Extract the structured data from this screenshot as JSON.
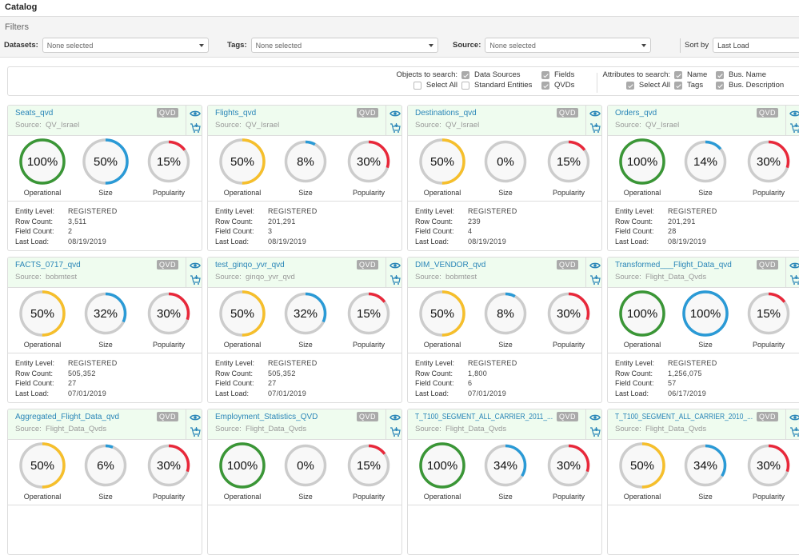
{
  "header": {
    "title": "Catalog"
  },
  "filters": {
    "title": "Filters",
    "datasets_label": "Datasets:",
    "datasets_value": "None selected",
    "tags_label": "Tags:",
    "tags_value": "None selected",
    "source_label": "Source:",
    "source_value": "None selected",
    "sort_label": "Sort by",
    "sort_value": "Last Load"
  },
  "search": {
    "objects_label": "Objects to search:",
    "objects": [
      {
        "label": "Select All",
        "checked": false
      },
      {
        "label": "Data Sources",
        "checked": true
      },
      {
        "label": "Standard Entities",
        "checked": false
      },
      {
        "label": "Fields",
        "checked": true
      },
      {
        "label": "QVDs",
        "checked": true
      }
    ],
    "attributes_label": "Attributes to search:",
    "attributes": [
      {
        "label": "Select All",
        "checked": true
      },
      {
        "label": "Name",
        "checked": true
      },
      {
        "label": "Tags",
        "checked": true
      },
      {
        "label": "Bus. Name",
        "checked": true
      },
      {
        "label": "Bus. Description",
        "checked": true
      }
    ]
  },
  "labels": {
    "source": "Source:",
    "badge": "QVD",
    "operational": "Operational",
    "size": "Size",
    "popularity": "Popularity",
    "entity_level": "Entity Level:",
    "row_count": "Row Count:",
    "field_count": "Field Count:",
    "last_load": "Last Load:"
  },
  "colors": {
    "operational_full": "#3a9636",
    "operational_partial": "#f6bf2b",
    "size": "#2a9ad6",
    "popularity": "#e8283a",
    "track": "#cccccc"
  },
  "cards": [
    {
      "name": "Seats_qvd",
      "source": "QV_Israel",
      "operational": "100%",
      "size": "50%",
      "popularity": "15%",
      "entity_level": "REGISTERED",
      "row_count": "3,511",
      "field_count": "2",
      "last_load": "08/19/2019"
    },
    {
      "name": "Flights_qvd",
      "source": "QV_Israel",
      "operational": "50%",
      "size": "8%",
      "popularity": "30%",
      "entity_level": "REGISTERED",
      "row_count": "201,291",
      "field_count": "3",
      "last_load": "08/19/2019"
    },
    {
      "name": "Destinations_qvd",
      "source": "QV_Israel",
      "operational": "50%",
      "size": "0%",
      "popularity": "15%",
      "entity_level": "REGISTERED",
      "row_count": "239",
      "field_count": "4",
      "last_load": "08/19/2019"
    },
    {
      "name": "Orders_qvd",
      "source": "QV_Israel",
      "operational": "100%",
      "size": "14%",
      "popularity": "30%",
      "entity_level": "REGISTERED",
      "row_count": "201,291",
      "field_count": "28",
      "last_load": "08/19/2019"
    },
    {
      "name": "FACTS_0717_qvd",
      "source": "bobmtest",
      "operational": "50%",
      "size": "32%",
      "popularity": "30%",
      "entity_level": "REGISTERED",
      "row_count": "505,352",
      "field_count": "27",
      "last_load": "07/01/2019"
    },
    {
      "name": "test_ginqo_yvr_qvd",
      "source": "ginqo_yvr_qvd",
      "operational": "50%",
      "size": "32%",
      "popularity": "15%",
      "entity_level": "REGISTERED",
      "row_count": "505,352",
      "field_count": "27",
      "last_load": "07/01/2019"
    },
    {
      "name": "DIM_VENDOR_qvd",
      "source": "bobmtest",
      "operational": "50%",
      "size": "8%",
      "popularity": "30%",
      "entity_level": "REGISTERED",
      "row_count": "1,800",
      "field_count": "6",
      "last_load": "07/01/2019"
    },
    {
      "name": "Transformed___Flight_Data_qvd",
      "source": "Flight_Data_Qvds",
      "operational": "100%",
      "size": "100%",
      "popularity": "15%",
      "entity_level": "REGISTERED",
      "row_count": "1,256,075",
      "field_count": "57",
      "last_load": "06/17/2019"
    },
    {
      "name": "Aggregated_Flight_Data_qvd",
      "source": "Flight_Data_Qvds",
      "operational": "50%",
      "size": "6%",
      "popularity": "30%"
    },
    {
      "name": "Employment_Statistics_QVD",
      "source": "Flight_Data_Qvds",
      "operational": "100%",
      "size": "0%",
      "popularity": "15%"
    },
    {
      "name": "T_T100_SEGMENT_ALL_CARRIER_2011_...",
      "source": "Flight_Data_Qvds",
      "operational": "100%",
      "size": "34%",
      "popularity": "30%"
    },
    {
      "name": "T_T100_SEGMENT_ALL_CARRIER_2010_...",
      "source": "Flight_Data_Qvds",
      "operational": "50%",
      "size": "34%",
      "popularity": "30%"
    }
  ]
}
